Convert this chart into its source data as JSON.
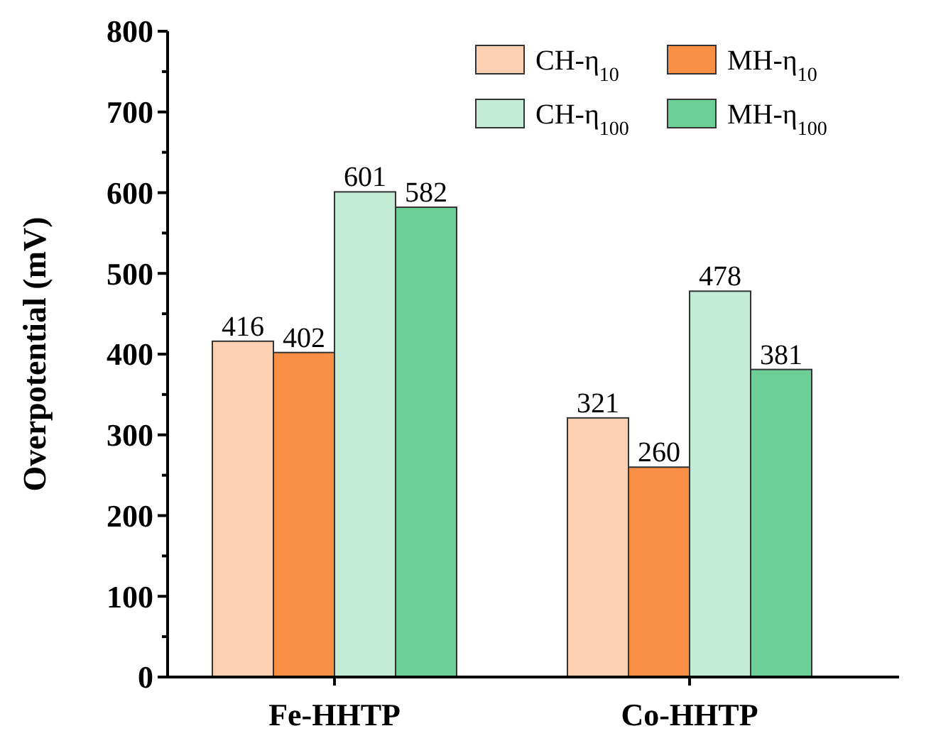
{
  "chart_data": {
    "type": "bar",
    "ylabel": "Overpotential (mV)",
    "categories": [
      "Fe-HHTP",
      "Co-HHTP"
    ],
    "series": [
      {
        "name": "CH-η$_{10}$",
        "color": "#fdd0b1",
        "values": [
          416,
          321
        ]
      },
      {
        "name": "MH-η$_{10}$",
        "color": "#f98f45",
        "values": [
          402,
          260
        ]
      },
      {
        "name": "CH-η$_{100}$",
        "color": "#c4ebd6",
        "values": [
          601,
          478
        ]
      },
      {
        "name": "MH-η$_{100}$",
        "color": "#6ccf96",
        "values": [
          582,
          381
        ]
      }
    ],
    "ylim": [
      0,
      800
    ],
    "yticks": [
      0,
      {
        "value": 50,
        "label": null
      },
      100,
      {
        "value": 150,
        "label": null
      },
      200,
      {
        "value": 250,
        "label": null
      },
      300,
      {
        "value": 350,
        "label": null
      },
      400,
      {
        "value": 450,
        "label": null
      },
      500,
      {
        "value": 550,
        "label": null
      },
      600,
      {
        "value": 650,
        "label": null
      },
      700,
      {
        "value": 750,
        "label": null
      },
      800
    ],
    "data_labels": true,
    "legend": "top right",
    "grid": false
  }
}
